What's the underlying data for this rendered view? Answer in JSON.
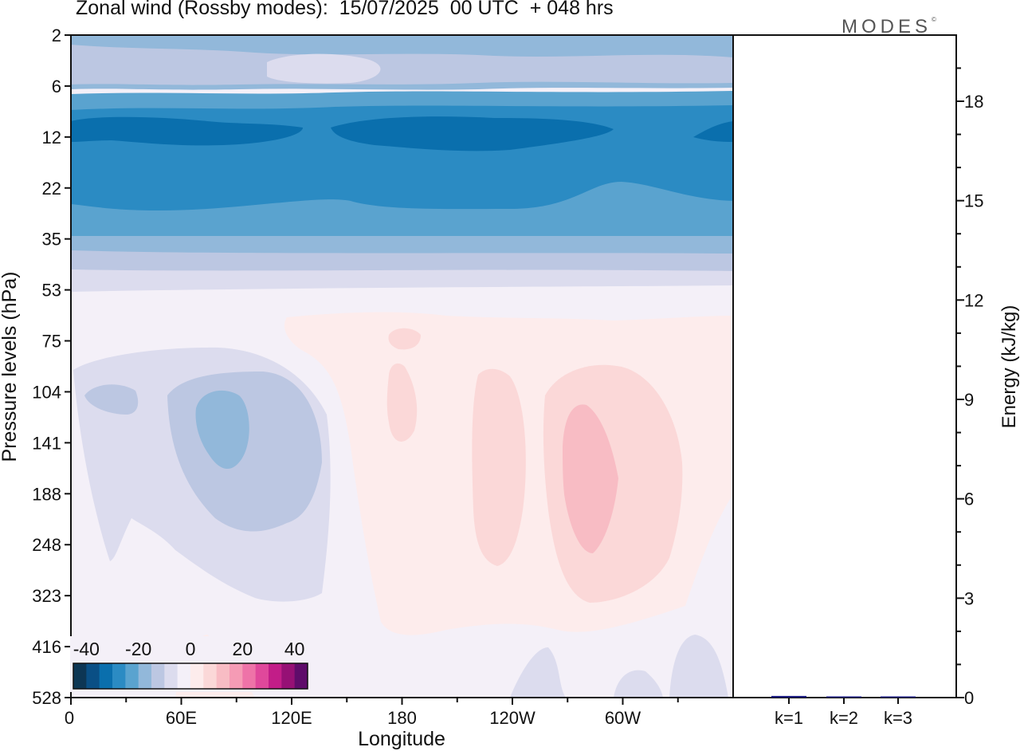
{
  "header": {
    "title": "Zonal wind (Rossby modes):  15/07/2025  00 UTC  + 048 hrs",
    "brand": "MODES",
    "brand_mark": "©"
  },
  "chart_data": [
    {
      "type": "heatmap",
      "title": "Zonal wind (Rossby modes):  15/07/2025  00 UTC  + 048 hrs",
      "xlabel": "Longitude",
      "ylabel": "Pressure levels (hPa)",
      "x_ticks": [
        "0",
        "60E",
        "120E",
        "180",
        "120W",
        "60W"
      ],
      "x_tick_degrees_east": [
        0,
        60,
        120,
        180,
        240,
        300
      ],
      "xlim": [
        0,
        360
      ],
      "y_levels": [
        2,
        6,
        12,
        22,
        35,
        53,
        75,
        104,
        141,
        188,
        248,
        323,
        416,
        528
      ],
      "y_range": [
        2,
        528
      ],
      "y_axis": "pressure, decreasing upward",
      "grid": false,
      "colorbar": {
        "placement": "bottom-left inset",
        "tick_labels": [
          "-40",
          "-20",
          "0",
          "20",
          "40"
        ],
        "tick_values": [
          -40,
          -20,
          0,
          20,
          40
        ],
        "colors": [
          "#0d3654",
          "#0a4f85",
          "#0a6fad",
          "#2b8bc3",
          "#5aa3cf",
          "#92b8da",
          "#bcc7e2",
          "#dcdcee",
          "#f4f0f8",
          "#fdecec",
          "#fbd8d8",
          "#f8bcc4",
          "#f59bb5",
          "#ee73a8",
          "#e0489b",
          "#c21d88",
          "#961075",
          "#5f0c6a"
        ],
        "interval_ms": 5
      },
      "features": [
        {
          "kind": "band",
          "value_ms": -12,
          "pressure_top": 2,
          "pressure_bottom": 6,
          "lon_start": 0,
          "lon_end": 360
        },
        {
          "kind": "band",
          "value_ms": -32,
          "pressure_top": 10,
          "pressure_bottom": 14,
          "lon_start": 0,
          "lon_end": 360
        },
        {
          "kind": "band",
          "value_ms": -25,
          "pressure_top": 7,
          "pressure_bottom": 32,
          "lon_start": 0,
          "lon_end": 360
        },
        {
          "kind": "band",
          "value_ms": -8,
          "pressure_top": 35,
          "pressure_bottom": 50,
          "lon_start": 0,
          "lon_end": 360
        },
        {
          "kind": "blob",
          "value_ms": -10,
          "lon_center": 85,
          "pressure_center": 141
        },
        {
          "kind": "blob",
          "value_ms": -5,
          "lon_center": 60,
          "pressure_center": 188
        },
        {
          "kind": "blob",
          "value_ms": 10,
          "lon_center": 285,
          "pressure_center": 175
        },
        {
          "kind": "blob",
          "value_ms": 5,
          "lon_center": 240,
          "pressure_center": 188
        },
        {
          "kind": "blob",
          "value_ms": 5,
          "lon_center": 180,
          "pressure_center": 110
        }
      ]
    },
    {
      "type": "bar",
      "categories": [
        "k=1",
        "k=2",
        "k=3"
      ],
      "values": [
        0.05,
        0.02,
        0.02
      ],
      "xlabel": "",
      "ylabel": "Energy (kJ/kg)",
      "ylim": [
        0,
        20
      ],
      "y_ticks": [
        0,
        3,
        6,
        9,
        12,
        15,
        18
      ],
      "color": "#1a1a80"
    }
  ]
}
